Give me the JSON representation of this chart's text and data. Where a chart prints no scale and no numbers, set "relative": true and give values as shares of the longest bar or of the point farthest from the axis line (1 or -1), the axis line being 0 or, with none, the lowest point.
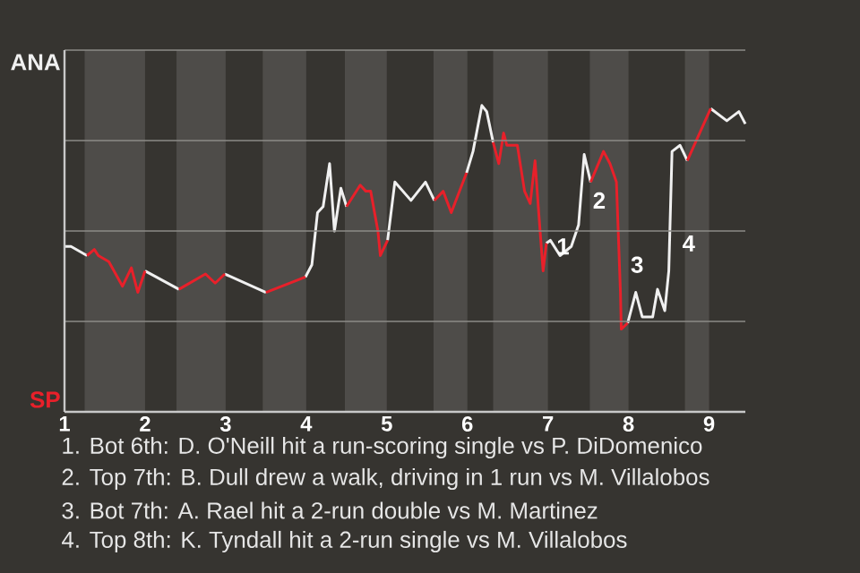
{
  "chart_data": {
    "type": "line",
    "relative": true,
    "xlim": [
      1,
      9.45
    ],
    "xticks": [
      1,
      2,
      3,
      4,
      5,
      6,
      7,
      8,
      9
    ],
    "grid": "y",
    "bands": [
      {
        "axis": "x",
        "from": 1.25,
        "to": 2,
        "color": "#4e4c49"
      },
      {
        "axis": "x",
        "from": 2.39,
        "to": 3,
        "color": "#4e4c49"
      },
      {
        "axis": "x",
        "from": 3.46,
        "to": 4,
        "color": "#4e4c49"
      },
      {
        "axis": "x",
        "from": 4.48,
        "to": 5,
        "color": "#4e4c49"
      },
      {
        "axis": "x",
        "from": 5.58,
        "to": 6,
        "color": "#4e4c49"
      },
      {
        "axis": "x",
        "from": 6.32,
        "to": 7,
        "color": "#4e4c49"
      },
      {
        "axis": "x",
        "from": 7.52,
        "to": 8,
        "color": "#4e4c49"
      },
      {
        "axis": "x",
        "from": 8.7,
        "to": 9,
        "color": "#4e4c49"
      }
    ],
    "series": [
      {
        "name": "ANA",
        "color": "#f0f0f0",
        "x": [
          1.0,
          1.08,
          1.28,
          null,
          2.0,
          2.42,
          null,
          2.99,
          3.5,
          null,
          3.99,
          4.07,
          4.14,
          4.21,
          4.29,
          4.35,
          4.43,
          4.5,
          null,
          5.01,
          5.1,
          5.3,
          5.48,
          5.59,
          null,
          5.99,
          6.07,
          6.18,
          6.24,
          6.32,
          null,
          6.98,
          7.03,
          7.15,
          7.29,
          7.38,
          7.45,
          7.53,
          null,
          7.99,
          8.09,
          8.17,
          8.3,
          8.36,
          8.45,
          8.5,
          8.54,
          8.64,
          8.73,
          null,
          9.02,
          9.22,
          9.37,
          9.45
        ],
        "values": [
          0.54,
          0.54,
          0.51,
          null,
          0.46,
          0.4,
          null,
          0.45,
          0.39,
          null,
          0.44,
          0.48,
          0.65,
          0.67,
          0.81,
          0.59,
          0.73,
          0.67,
          null,
          0.56,
          0.75,
          0.69,
          0.75,
          0.69,
          null,
          0.78,
          0.85,
          1,
          0.98,
          0.88,
          null,
          0.55,
          0.56,
          0.51,
          0.54,
          0.61,
          0.84,
          0.75,
          null,
          0.29,
          0.39,
          0.31,
          0.31,
          0.4,
          0.33,
          0.46,
          0.85,
          0.87,
          0.82,
          null,
          0.99,
          0.95,
          0.98,
          0.94
        ]
      },
      {
        "name": "SP",
        "color": "#e8202a",
        "x": [
          1.28,
          1.37,
          1.42,
          1.55,
          1.72,
          1.83,
          1.91,
          2.0,
          null,
          2.42,
          2.75,
          2.87,
          2.99,
          null,
          3.5,
          3.99,
          null,
          4.5,
          4.67,
          4.74,
          4.8,
          4.89,
          4.92,
          5.01,
          null,
          5.59,
          5.7,
          5.8,
          5.99,
          null,
          6.32,
          6.39,
          6.45,
          6.49,
          6.62,
          6.71,
          6.78,
          6.84,
          6.88,
          6.94,
          6.98,
          null,
          7.53,
          7.69,
          7.77,
          7.85,
          7.9,
          7.91,
          7.99,
          null,
          8.73,
          9.02
        ],
        "values": [
          0.51,
          0.53,
          0.51,
          0.49,
          0.41,
          0.47,
          0.39,
          0.46,
          null,
          0.4,
          0.45,
          0.42,
          0.45,
          null,
          0.39,
          0.44,
          null,
          0.67,
          0.74,
          0.72,
          0.72,
          0.59,
          0.51,
          0.56,
          null,
          0.69,
          0.72,
          0.65,
          0.78,
          null,
          0.88,
          0.81,
          0.91,
          0.87,
          0.87,
          0.72,
          0.68,
          0.82,
          0.67,
          0.46,
          0.55,
          null,
          0.75,
          0.85,
          0.81,
          0.75,
          0.39,
          0.27,
          0.29,
          null,
          0.82,
          0.99
        ]
      }
    ],
    "annotations": [
      {
        "text": "1",
        "x": 7.08,
        "y": 0.54
      },
      {
        "text": "2",
        "x": 7.53,
        "y": 0.69
      },
      {
        "text": "3",
        "x": 8.0,
        "y": 0.48
      },
      {
        "text": "4",
        "x": 8.64,
        "y": 0.55
      },
      "1. Bot 6th: D. O'Neill hit a run-scoring single vs P. DiDomenico",
      "2. Top 7th: B. Dull drew a walk, driving in 1 run vs M. Villalobos",
      "3. Bot 7th: A. Rael hit a 2-run double vs M. Martinez",
      "4. Top 8th: K. Tyndall hit a 2-run single vs M. Villalobos"
    ]
  }
}
